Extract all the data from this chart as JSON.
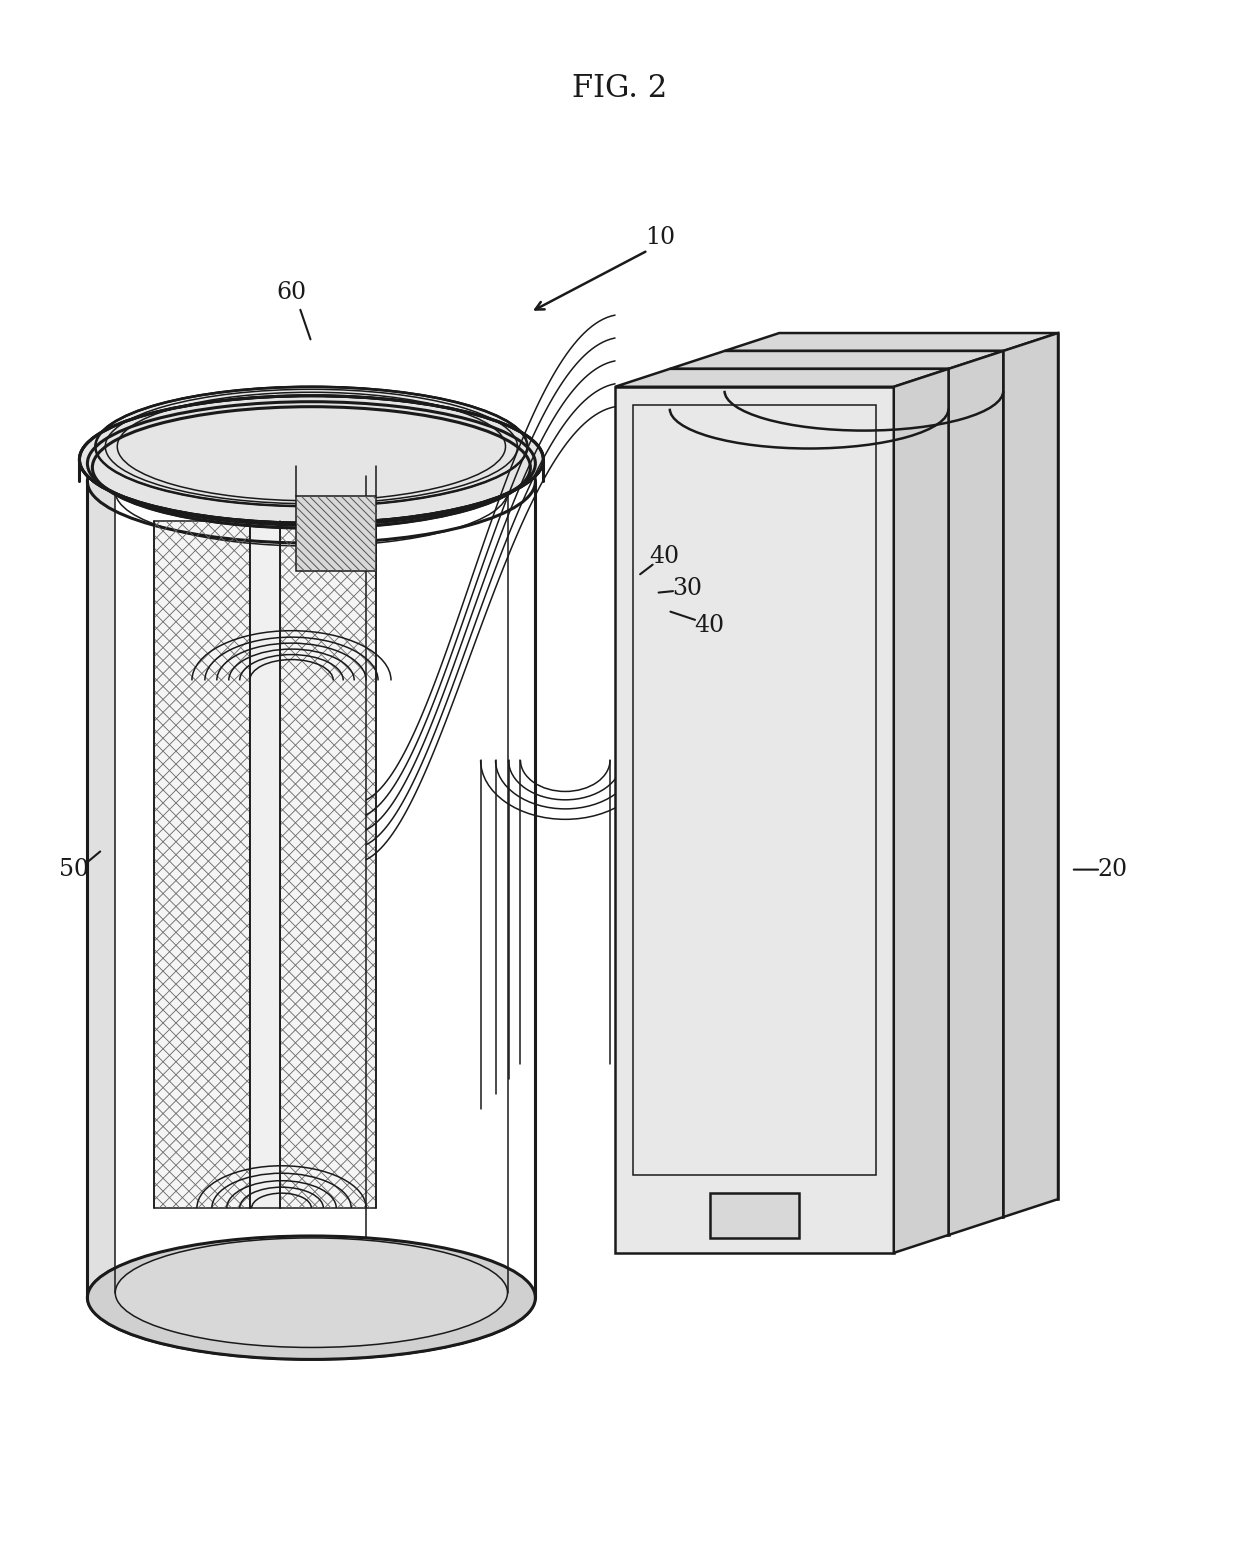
{
  "title": "FIG. 2",
  "title_fontsize": 22,
  "background_color": "#ffffff",
  "line_color": "#1a1a1a",
  "label_fontsize": 17,
  "fig_width": 12.4,
  "fig_height": 15.67,
  "dpi": 100,
  "lw_thick": 2.2,
  "lw_main": 1.8,
  "lw_thin": 1.1,
  "lw_hatch": 0.6,
  "gray_light": "#e8e8e8",
  "gray_mid": "#cccccc",
  "gray_dark": "#aaaaaa",
  "white": "#ffffff",
  "hatch_gray": "#666666"
}
